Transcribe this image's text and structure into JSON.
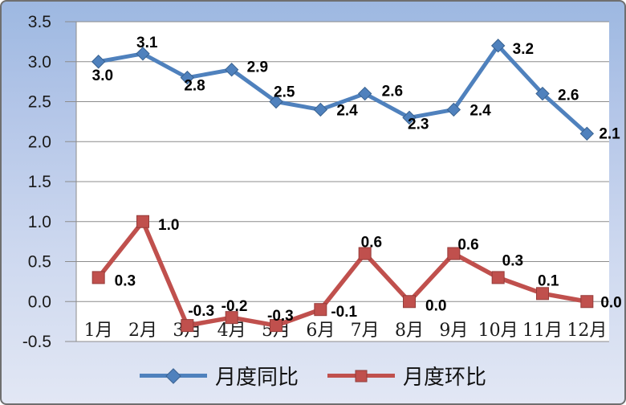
{
  "chart_data": {
    "type": "line",
    "categories": [
      "1月",
      "2月",
      "3月",
      "4月",
      "5月",
      "6月",
      "7月",
      "8月",
      "9月",
      "10月",
      "11月",
      "12月"
    ],
    "series": [
      {
        "name": "月度同比",
        "color": "#4F81BD",
        "marker": "diamond",
        "values": [
          3.0,
          3.1,
          2.8,
          2.9,
          2.5,
          2.4,
          2.6,
          2.3,
          2.4,
          3.2,
          2.6,
          2.1
        ],
        "labels": [
          "3.0",
          "3.1",
          "2.8",
          "2.9",
          "2.5",
          "2.4",
          "2.6",
          "2.3",
          "2.4",
          "3.2",
          "2.6",
          "2.1"
        ]
      },
      {
        "name": "月度环比",
        "color": "#C0504D",
        "marker": "square",
        "values": [
          0.3,
          1.0,
          -0.3,
          -0.2,
          -0.3,
          -0.1,
          0.6,
          0.0,
          0.6,
          0.3,
          0.1,
          0.0
        ],
        "labels": [
          "0.3",
          "1.0",
          "-0.3",
          "-0.2",
          "-0.3",
          "-0.1",
          "0.6",
          "0.0",
          "0.6",
          "0.3",
          "0.1",
          "0.0"
        ]
      }
    ],
    "y_ticks": [
      "3.5",
      "3.0",
      "2.5",
      "2.0",
      "1.5",
      "1.0",
      "0.5",
      "0.0",
      "-0.5"
    ],
    "ylim": [
      -0.5,
      3.5
    ],
    "grid": true,
    "grid_color": "#8c8c8c",
    "plot_background": "#ffffff",
    "legend_position": "bottom",
    "title": "",
    "xlabel": "",
    "ylabel": ""
  },
  "legend": {
    "items": [
      {
        "label": "月度同比",
        "color": "#4F81BD",
        "marker": "diamond"
      },
      {
        "label": "月度环比",
        "color": "#C0504D",
        "marker": "square"
      }
    ]
  }
}
